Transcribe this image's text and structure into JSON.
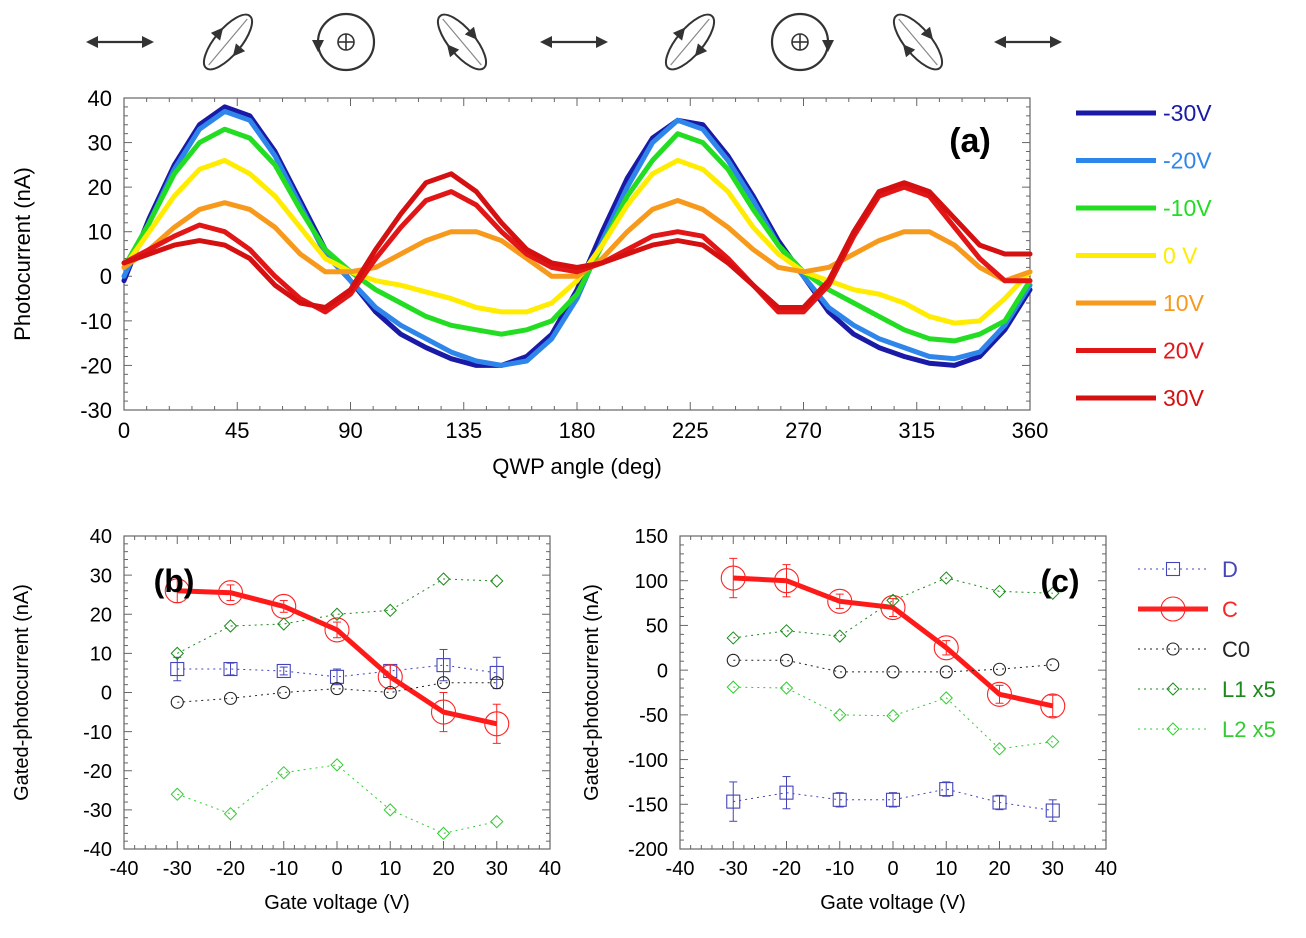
{
  "polarization_icons": [
    "linear-horizontal",
    "elliptical-left",
    "circular-left",
    "elliptical-right",
    "linear-horizontal",
    "elliptical-left",
    "circular-right",
    "elliptical-right",
    "linear-horizontal"
  ],
  "chart_data": [
    {
      "id": "a",
      "type": "line",
      "panel_label": "(a)",
      "xlabel": "QWP angle (deg)",
      "ylabel": "Photocurrent (nA)",
      "xlim": [
        0,
        360
      ],
      "ylim": [
        -30,
        40
      ],
      "xticks": [
        0,
        45,
        90,
        135,
        180,
        225,
        270,
        315,
        360
      ],
      "yticks": [
        -30,
        -20,
        -10,
        0,
        10,
        20,
        30,
        40
      ],
      "grid": false,
      "legend_position": "right",
      "x": [
        0,
        10,
        20,
        30,
        40,
        50,
        60,
        70,
        80,
        90,
        100,
        110,
        120,
        130,
        140,
        150,
        160,
        170,
        180,
        190,
        200,
        210,
        220,
        230,
        240,
        250,
        260,
        270,
        280,
        290,
        300,
        310,
        320,
        330,
        340,
        350,
        360
      ],
      "series": [
        {
          "name": "-30V",
          "color": "#1a1aa6",
          "values": [
            -1,
            13,
            25,
            34,
            38,
            36,
            28,
            17,
            6,
            -1,
            -8,
            -13,
            -16,
            -18.5,
            -20,
            -20,
            -18,
            -13,
            -3,
            10,
            22,
            31,
            35,
            34,
            27,
            18,
            8,
            0,
            -8,
            -13,
            -16,
            -18,
            -19.5,
            -20,
            -18,
            -12,
            -3
          ]
        },
        {
          "name": "-20V",
          "color": "#2f86ea",
          "values": [
            0,
            12,
            24,
            33,
            37,
            35,
            27,
            16,
            5,
            -1,
            -7,
            -11,
            -14,
            -17,
            -19,
            -20,
            -19,
            -14,
            -5,
            8,
            20,
            30,
            35,
            33,
            26,
            17,
            7,
            0,
            -7,
            -11,
            -14,
            -16,
            -18,
            -18.5,
            -17,
            -11,
            -2
          ]
        },
        {
          "name": "-10V",
          "color": "#22dd22",
          "values": [
            2,
            12,
            23,
            30,
            33,
            31,
            25,
            15,
            6,
            1,
            -3,
            -6,
            -9,
            -11,
            -12,
            -13,
            -12,
            -10,
            -4,
            7,
            18,
            26,
            32,
            30,
            24,
            15,
            7,
            1,
            -3,
            -6,
            -9,
            -12,
            -14,
            -14.5,
            -13,
            -10,
            -1
          ]
        },
        {
          "name": "0 V",
          "color": "#ffec00",
          "values": [
            2,
            10,
            18,
            24,
            26,
            23,
            18,
            11,
            4,
            1,
            -1,
            -2,
            -3.5,
            -5,
            -7,
            -8,
            -8,
            -6,
            -1,
            7,
            16,
            23,
            26,
            24,
            19,
            11,
            5,
            1,
            -1,
            -3,
            -4,
            -6,
            -9,
            -10.5,
            -10,
            -5,
            1
          ]
        },
        {
          "name": "10V",
          "color": "#f79a1c",
          "values": [
            2,
            6,
            11,
            15,
            16.5,
            15,
            11,
            5,
            1,
            1,
            2,
            5,
            8,
            10,
            10,
            8,
            4,
            0,
            0,
            4,
            10,
            15,
            17,
            15,
            11,
            6,
            2,
            1,
            2,
            5,
            8,
            10,
            10,
            7,
            2,
            -1,
            1
          ]
        },
        {
          "name": "20V",
          "color": "#e21616",
          "values": [
            3,
            6,
            9,
            11.5,
            10,
            6,
            0,
            -5,
            -8,
            -4,
            4,
            11,
            17,
            19,
            16,
            10,
            5,
            2,
            1,
            3,
            6,
            9,
            10,
            9,
            4,
            -2,
            -8,
            -8,
            -2,
            9,
            18,
            20,
            18,
            11,
            4,
            -1,
            -1
          ]
        },
        {
          "name": "30V",
          "color": "#d41010",
          "values": [
            3,
            5,
            7,
            8,
            7,
            4,
            -2,
            -6,
            -7,
            -3,
            6,
            14,
            21,
            23,
            19,
            12,
            6,
            3,
            2,
            3,
            5,
            7,
            8,
            7,
            3,
            -2,
            -7,
            -7,
            -1,
            10,
            19,
            21,
            19,
            13,
            7,
            5,
            5
          ]
        }
      ]
    },
    {
      "id": "b",
      "type": "line",
      "panel_label": "(b)",
      "xlabel": "Gate voltage (V)",
      "ylabel": "Gated-photocurrent (nA)",
      "xlim": [
        -40,
        40
      ],
      "ylim": [
        -40,
        40
      ],
      "xticks": [
        -40,
        -30,
        -20,
        -10,
        0,
        10,
        20,
        30,
        40
      ],
      "yticks": [
        -40,
        -30,
        -20,
        -10,
        0,
        10,
        20,
        30,
        40
      ],
      "grid": false,
      "x": [
        -30,
        -20,
        -10,
        0,
        10,
        20,
        30
      ],
      "series": [
        {
          "name": "D",
          "color": "#4444bb",
          "values": [
            6,
            6,
            5.5,
            4,
            5.5,
            7,
            5
          ],
          "errors": [
            3,
            1.5,
            1,
            2,
            1.5,
            4,
            4
          ]
        },
        {
          "name": "C",
          "color": "#ff2222",
          "values": [
            26,
            25.5,
            22,
            16,
            4,
            -5,
            -8
          ],
          "errors": [
            3,
            2,
            1.5,
            2,
            3,
            5,
            5
          ]
        },
        {
          "name": "C0",
          "color": "#222222",
          "values": [
            -2.5,
            -1.5,
            0,
            1,
            0,
            2.5,
            2.5
          ]
        },
        {
          "name": "L1 x5",
          "color": "#1a8a1a",
          "values": [
            10,
            17,
            17.5,
            20,
            21,
            29,
            28.5
          ]
        },
        {
          "name": "L2 x5",
          "color": "#33cc33",
          "values": [
            -26,
            -31,
            -20.5,
            -18.5,
            -30,
            -36,
            -33
          ]
        }
      ]
    },
    {
      "id": "c",
      "type": "line",
      "panel_label": "(c)",
      "xlabel": "Gate voltage (V)",
      "ylabel": "Gated-photocurrent (nA)",
      "xlim": [
        -40,
        40
      ],
      "ylim": [
        -200,
        150
      ],
      "xticks": [
        -40,
        -30,
        -20,
        -10,
        0,
        10,
        20,
        30,
        40
      ],
      "yticks": [
        -200,
        -150,
        -100,
        -50,
        0,
        50,
        100,
        150
      ],
      "grid": false,
      "legend_position": "right",
      "x": [
        -30,
        -20,
        -10,
        0,
        10,
        20,
        30
      ],
      "series": [
        {
          "name": "D",
          "color": "#4444bb",
          "values": [
            -147,
            -137,
            -145,
            -145,
            -133,
            -148,
            -157
          ],
          "errors": [
            22,
            18,
            8,
            8,
            8,
            8,
            12
          ]
        },
        {
          "name": "C",
          "color": "#ff2222",
          "values": [
            103,
            100,
            77,
            70,
            25,
            -27,
            -40
          ],
          "errors": [
            22,
            18,
            8,
            10,
            8,
            10,
            12
          ]
        },
        {
          "name": "C0",
          "color": "#222222",
          "values": [
            11,
            11,
            -2,
            -2,
            -2,
            1,
            6
          ]
        },
        {
          "name": "L1 x5",
          "color": "#1a8a1a",
          "values": [
            36,
            44,
            38,
            78,
            103,
            88,
            86
          ]
        },
        {
          "name": "L2 x5",
          "color": "#33cc33",
          "values": [
            -19,
            -20,
            -50,
            -51,
            -31,
            -88,
            -80
          ]
        }
      ]
    }
  ]
}
